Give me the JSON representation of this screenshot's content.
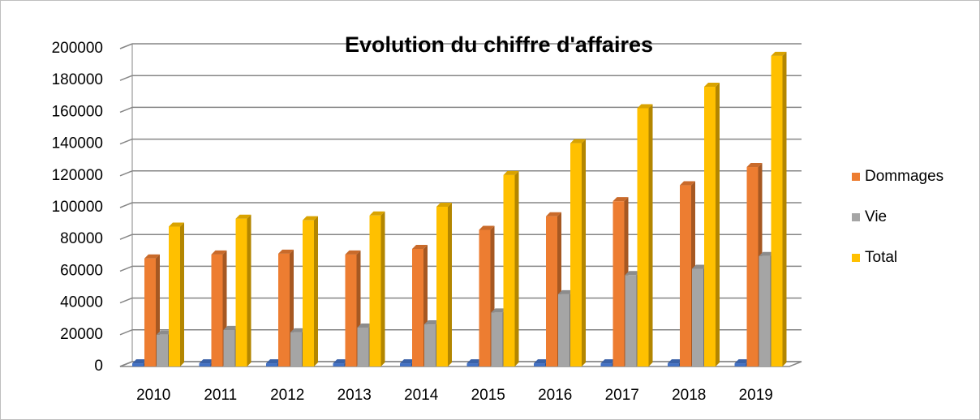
{
  "chart_data": {
    "type": "bar3d",
    "title": "Evolution du chiffre d'affaires",
    "categories": [
      "2010",
      "2011",
      "2012",
      "2013",
      "2014",
      "2015",
      "2016",
      "2017",
      "2018",
      "2019"
    ],
    "series": [
      {
        "color": "#4472c4",
        "values": [
          2000,
          2000,
          2000,
          2000,
          2000,
          2000,
          2000,
          2000,
          2000,
          2000
        ]
      },
      {
        "name": "Dommages",
        "color": "#ed7d31",
        "values": [
          68000,
          70500,
          71000,
          70500,
          74000,
          86000,
          94500,
          104000,
          114000,
          125500
        ]
      },
      {
        "name": "Vie",
        "color": "#a5a5a5",
        "values": [
          20000,
          23000,
          21500,
          24500,
          26500,
          34000,
          45500,
          57500,
          61500,
          69500
        ]
      },
      {
        "name": "Total",
        "color": "#ffc000",
        "values": [
          88000,
          93000,
          92000,
          95000,
          100500,
          120500,
          140500,
          162500,
          176000,
          195500
        ]
      }
    ],
    "ylim": [
      0,
      200000
    ],
    "yticks": [
      0,
      20000,
      40000,
      60000,
      80000,
      100000,
      120000,
      140000,
      160000,
      180000,
      200000
    ],
    "grid": true,
    "legend": "right"
  }
}
